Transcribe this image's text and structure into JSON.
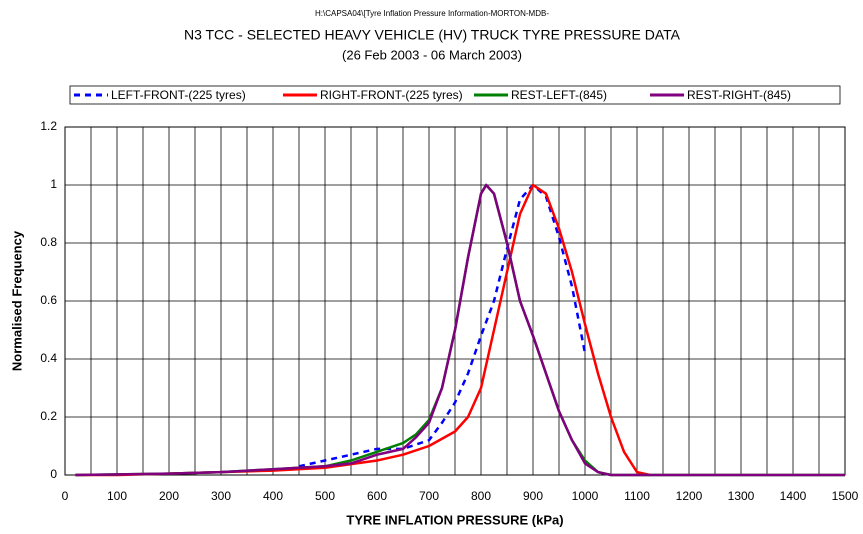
{
  "chart_data": {
    "type": "line",
    "path_note_title": null,
    "supertitle": "H:\\CAPSA04\\[Tyre Inflation Pressure Information-MORTON-MDB-",
    "title": "N3 TCC - SELECTED HEAVY VEHICLE (HV) TRUCK TYRE PRESSURE DATA",
    "subtitle": "(26 Feb 2003 - 06 March 2003)",
    "xlabel": "TYRE INFLATION PRESSURE (kPa)",
    "ylabel": "Normalised Frequency",
    "xlim": [
      0,
      1500
    ],
    "ylim": [
      0,
      1.2
    ],
    "xticks": [
      0,
      100,
      200,
      300,
      400,
      500,
      600,
      700,
      800,
      900,
      1000,
      1100,
      1200,
      1300,
      1400,
      1500
    ],
    "yticks": [
      0,
      0.2,
      0.4,
      0.6,
      0.8,
      1,
      1.2
    ],
    "grid": true,
    "legend": "top",
    "series": [
      {
        "name": "LEFT-FRONT-(225 tyres)",
        "color": "#0000ff",
        "dash": true,
        "x": [
          450,
          500,
          550,
          600,
          650,
          700,
          725,
          750,
          775,
          800,
          825,
          850,
          875,
          900,
          925,
          950,
          975,
          1000
        ],
        "values": [
          0.03,
          0.05,
          0.07,
          0.09,
          0.09,
          0.12,
          0.18,
          0.25,
          0.35,
          0.48,
          0.6,
          0.78,
          0.95,
          1.0,
          0.96,
          0.82,
          0.65,
          0.42
        ]
      },
      {
        "name": "RIGHT-FRONT-(225 tyres)",
        "color": "#ff0000",
        "dash": false,
        "x": [
          20,
          100,
          200,
          300,
          400,
          500,
          600,
          650,
          700,
          750,
          775,
          800,
          825,
          850,
          875,
          900,
          925,
          950,
          975,
          1000,
          1025,
          1050,
          1075,
          1100,
          1125
        ],
        "values": [
          0,
          0,
          0.005,
          0.01,
          0.015,
          0.025,
          0.05,
          0.07,
          0.1,
          0.15,
          0.2,
          0.3,
          0.5,
          0.7,
          0.9,
          1.0,
          0.97,
          0.85,
          0.7,
          0.52,
          0.35,
          0.2,
          0.08,
          0.01,
          0
        ]
      },
      {
        "name": "REST-LEFT-(845)",
        "color": "#008000",
        "dash": false,
        "x": [
          20,
          200,
          300,
          400,
          500,
          550,
          600,
          650,
          675,
          700,
          725,
          750,
          775,
          800,
          810,
          825,
          850,
          875,
          900,
          925,
          950,
          975,
          1000,
          1025,
          1050,
          1500
        ],
        "values": [
          0,
          0.005,
          0.01,
          0.02,
          0.03,
          0.05,
          0.08,
          0.11,
          0.14,
          0.19,
          0.3,
          0.5,
          0.75,
          0.97,
          1.0,
          0.97,
          0.8,
          0.6,
          0.48,
          0.35,
          0.22,
          0.12,
          0.05,
          0.01,
          0,
          0
        ]
      },
      {
        "name": "REST-RIGHT-(845)",
        "color": "#800080",
        "dash": false,
        "x": [
          20,
          200,
          300,
          400,
          500,
          550,
          600,
          650,
          675,
          700,
          725,
          750,
          775,
          800,
          810,
          825,
          850,
          875,
          900,
          925,
          950,
          975,
          1000,
          1025,
          1050,
          1500
        ],
        "values": [
          0,
          0.005,
          0.01,
          0.02,
          0.03,
          0.04,
          0.07,
          0.09,
          0.13,
          0.18,
          0.3,
          0.5,
          0.75,
          0.97,
          1.0,
          0.97,
          0.8,
          0.6,
          0.48,
          0.35,
          0.22,
          0.12,
          0.04,
          0.01,
          0,
          0
        ]
      }
    ]
  }
}
